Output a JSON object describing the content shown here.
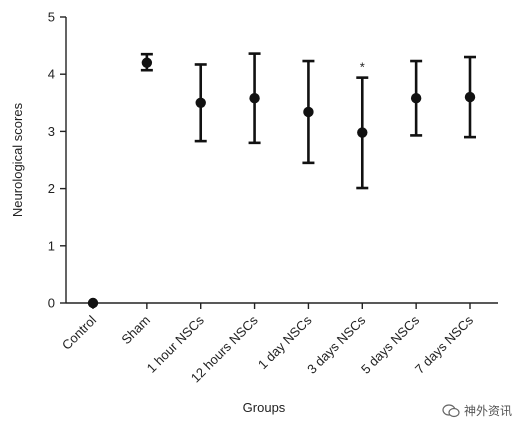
{
  "chart_data": {
    "type": "scatter",
    "title": "",
    "xlabel": "Groups",
    "ylabel": "Neurological scores",
    "ylim": [
      0,
      5
    ],
    "yticks": [
      0,
      1,
      2,
      3,
      4,
      5
    ],
    "grid": false,
    "categories": [
      "Control",
      "Sham",
      "1 hour NSCs",
      "12 hours NSCs",
      "1 day NSCs",
      "3 days NSCs",
      "5 days NSCs",
      "7 days NSCs"
    ],
    "series": [
      {
        "mean": [
          0.0,
          4.2,
          3.5,
          3.58,
          3.34,
          2.98,
          3.58,
          3.6
        ],
        "err_low": [
          0.0,
          4.07,
          2.83,
          2.8,
          2.45,
          2.01,
          2.93,
          2.9
        ],
        "err_high": [
          0.0,
          4.35,
          4.17,
          4.36,
          4.23,
          3.94,
          4.23,
          4.3
        ]
      }
    ],
    "annotations": [
      {
        "category": "3 days NSCs",
        "text": "*"
      }
    ]
  },
  "watermark": {
    "text": "神外资讯"
  }
}
